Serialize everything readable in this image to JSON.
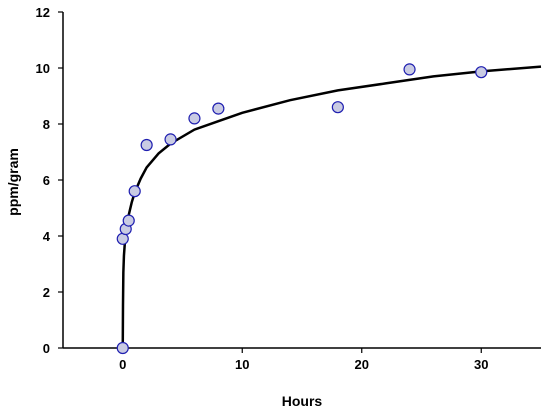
{
  "chart_data": {
    "type": "scatter",
    "xlabel": "Hours",
    "ylabel": "ppm/gram",
    "xlim": [
      -5,
      35
    ],
    "ylim": [
      0,
      12
    ],
    "x_ticks": [
      0,
      10,
      20,
      30
    ],
    "y_ticks": [
      0,
      2,
      4,
      6,
      8,
      10,
      12
    ],
    "grid": false,
    "legend": "none",
    "marker_fill": "#c9cbe3",
    "marker_stroke": "#1f1fb0",
    "line_color": "#000000",
    "series": [
      {
        "points": [
          {
            "x": 0,
            "y": 0
          },
          {
            "x": 0,
            "y": 3.9
          },
          {
            "x": 0.25,
            "y": 4.25
          },
          {
            "x": 0.5,
            "y": 4.55
          },
          {
            "x": 1,
            "y": 5.6
          },
          {
            "x": 2,
            "y": 7.25
          },
          {
            "x": 4,
            "y": 7.45
          },
          {
            "x": 6,
            "y": 8.2
          },
          {
            "x": 8,
            "y": 8.55
          },
          {
            "x": 18,
            "y": 8.6
          },
          {
            "x": 24,
            "y": 9.95
          },
          {
            "x": 30,
            "y": 9.85
          }
        ]
      }
    ],
    "fit_curve": [
      {
        "x": 0,
        "y": 0
      },
      {
        "x": 0.02,
        "y": 1.5
      },
      {
        "x": 0.05,
        "y": 2.7
      },
      {
        "x": 0.1,
        "y": 3.3
      },
      {
        "x": 0.2,
        "y": 3.9
      },
      {
        "x": 0.35,
        "y": 4.4
      },
      {
        "x": 0.5,
        "y": 4.75
      },
      {
        "x": 0.75,
        "y": 5.2
      },
      {
        "x": 1,
        "y": 5.55
      },
      {
        "x": 1.5,
        "y": 6.05
      },
      {
        "x": 2,
        "y": 6.45
      },
      {
        "x": 3,
        "y": 6.95
      },
      {
        "x": 4,
        "y": 7.3
      },
      {
        "x": 6,
        "y": 7.8
      },
      {
        "x": 8,
        "y": 8.1
      },
      {
        "x": 10,
        "y": 8.4
      },
      {
        "x": 14,
        "y": 8.85
      },
      {
        "x": 18,
        "y": 9.2
      },
      {
        "x": 22,
        "y": 9.45
      },
      {
        "x": 26,
        "y": 9.7
      },
      {
        "x": 30,
        "y": 9.88
      },
      {
        "x": 35,
        "y": 10.05
      }
    ]
  }
}
